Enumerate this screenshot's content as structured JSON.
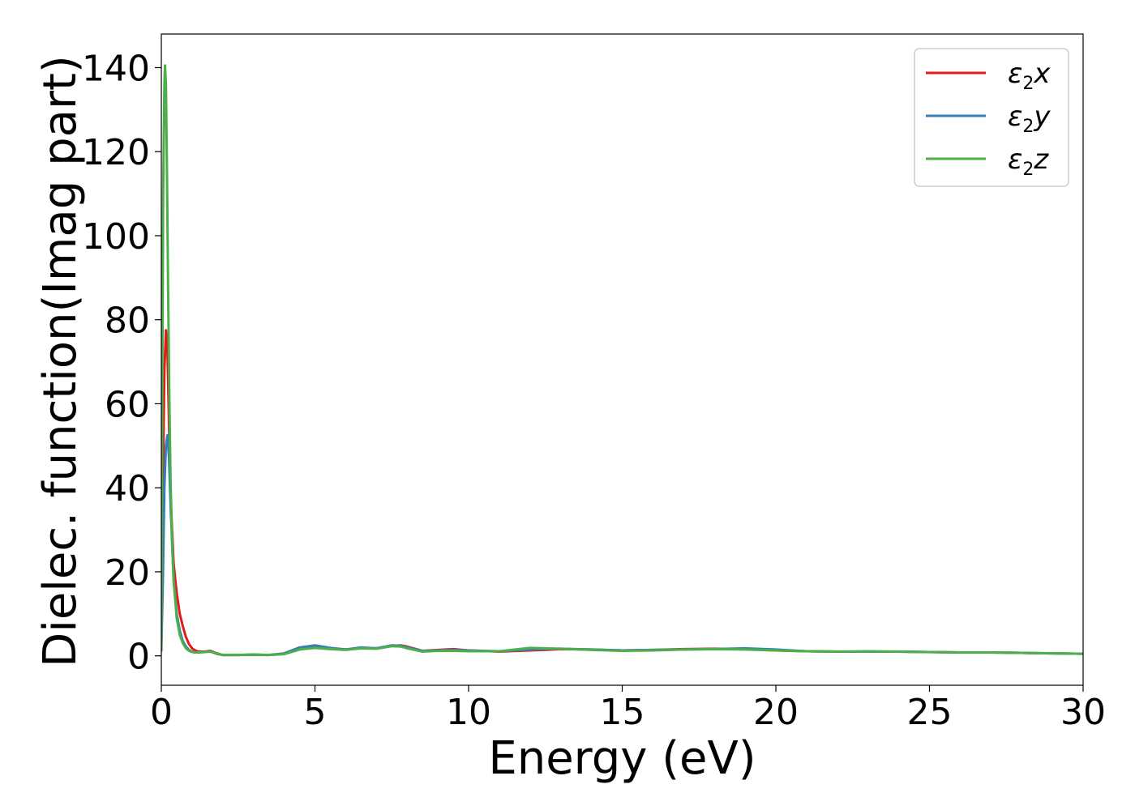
{
  "chart_data": {
    "type": "line",
    "title": "",
    "xlabel": "Energy (eV)",
    "ylabel": "Dielec. function(Imag part)",
    "xlim": [
      0,
      30
    ],
    "ylim": [
      -7,
      148
    ],
    "xticks": [
      0,
      5,
      10,
      15,
      20,
      25,
      30
    ],
    "yticks": [
      0,
      20,
      40,
      60,
      80,
      100,
      120,
      140
    ],
    "grid": false,
    "legend_position": "top-right",
    "series": [
      {
        "name": "ε2x",
        "legend": {
          "base": "ε",
          "sub": "2",
          "tail": "x"
        },
        "color": "#e41a1c",
        "x": [
          0,
          0.05,
          0.1,
          0.15,
          0.2,
          0.25,
          0.3,
          0.4,
          0.5,
          0.6,
          0.7,
          0.8,
          0.9,
          1.0,
          1.1,
          1.2,
          1.4,
          1.6,
          1.8,
          2.0,
          2.5,
          3.0,
          3.5,
          4.0,
          4.5,
          5.0,
          5.5,
          6.0,
          6.5,
          7.0,
          7.5,
          7.8,
          8.0,
          8.5,
          9.0,
          9.5,
          10.0,
          11.0,
          12.0,
          12.5,
          13.0,
          14.0,
          15.0,
          16.0,
          17.0,
          18.0,
          19.0,
          20.0,
          21.0,
          22.0,
          23.0,
          24.0,
          25.0,
          26.0,
          27.0,
          28.0,
          29.0,
          30.0
        ],
        "y": [
          2,
          40,
          68,
          77.5,
          72,
          55,
          38,
          22,
          15,
          10,
          7,
          4.5,
          2.8,
          1.8,
          1.3,
          1.0,
          1.0,
          1.2,
          0.6,
          0.2,
          0.2,
          0.3,
          0.2,
          0.5,
          1.8,
          2.2,
          1.8,
          1.5,
          1.9,
          1.8,
          2.4,
          2.5,
          2.2,
          1.2,
          1.4,
          1.6,
          1.3,
          1.0,
          1.3,
          1.4,
          1.6,
          1.5,
          1.3,
          1.4,
          1.6,
          1.7,
          1.6,
          1.3,
          1.1,
          1.0,
          1.0,
          1.0,
          0.9,
          0.8,
          0.8,
          0.7,
          0.6,
          0.5
        ]
      },
      {
        "name": "ε2y",
        "legend": {
          "base": "ε",
          "sub": "2",
          "tail": "y"
        },
        "color": "#377eb8",
        "x": [
          0,
          0.05,
          0.1,
          0.15,
          0.2,
          0.25,
          0.3,
          0.4,
          0.5,
          0.6,
          0.7,
          0.8,
          0.9,
          1.0,
          1.1,
          1.2,
          1.4,
          1.6,
          1.8,
          2.0,
          2.5,
          3.0,
          3.5,
          4.0,
          4.5,
          5.0,
          5.5,
          6.0,
          6.5,
          7.0,
          7.5,
          7.8,
          8.0,
          8.5,
          9.0,
          9.5,
          10.0,
          11.0,
          12.0,
          12.5,
          13.0,
          14.0,
          15.0,
          16.0,
          17.0,
          18.0,
          19.0,
          20.0,
          21.0,
          22.0,
          23.0,
          24.0,
          25.0,
          26.0,
          27.0,
          28.0,
          29.0,
          30.0
        ],
        "y": [
          1,
          18,
          40,
          50,
          52.5,
          47,
          36,
          18,
          10,
          6,
          3.5,
          2.2,
          1.4,
          1.0,
          0.8,
          0.8,
          0.9,
          1.1,
          0.5,
          0.2,
          0.2,
          0.3,
          0.2,
          0.6,
          2.0,
          2.5,
          1.9,
          1.5,
          2.0,
          1.8,
          2.5,
          2.4,
          2.0,
          1.2,
          1.3,
          1.4,
          1.3,
          1.1,
          1.5,
          1.6,
          1.7,
          1.5,
          1.3,
          1.4,
          1.5,
          1.6,
          1.8,
          1.5,
          1.1,
          1.0,
          1.0,
          1.0,
          0.9,
          0.8,
          0.8,
          0.7,
          0.6,
          0.5
        ]
      },
      {
        "name": "ε2z",
        "legend": {
          "base": "ε",
          "sub": "2",
          "tail": "z"
        },
        "color": "#4daf4a",
        "x": [
          0,
          0.03,
          0.06,
          0.1,
          0.12,
          0.15,
          0.18,
          0.22,
          0.26,
          0.3,
          0.35,
          0.4,
          0.5,
          0.6,
          0.7,
          0.8,
          0.9,
          1.0,
          1.1,
          1.2,
          1.4,
          1.6,
          1.8,
          2.0,
          2.5,
          3.0,
          3.5,
          4.0,
          4.5,
          5.0,
          5.5,
          6.0,
          6.5,
          7.0,
          7.5,
          7.8,
          8.0,
          8.5,
          9.0,
          9.5,
          10.0,
          11.0,
          12.0,
          12.5,
          13.0,
          14.0,
          15.0,
          16.0,
          17.0,
          18.0,
          19.0,
          20.0,
          21.0,
          22.0,
          23.0,
          24.0,
          25.0,
          26.0,
          27.0,
          28.0,
          29.0,
          30.0
        ],
        "y": [
          2,
          60,
          110,
          136,
          140.5,
          136,
          118,
          88,
          62,
          42,
          27,
          18,
          9,
          5,
          3,
          1.8,
          1.2,
          0.9,
          0.8,
          0.8,
          0.9,
          1.0,
          0.5,
          0.2,
          0.2,
          0.2,
          0.2,
          0.4,
          1.5,
          1.9,
          1.6,
          1.4,
          1.8,
          1.7,
          2.3,
          2.2,
          1.8,
          1.0,
          1.2,
          1.2,
          1.1,
          1.1,
          1.9,
          1.8,
          1.7,
          1.4,
          1.2,
          1.3,
          1.5,
          1.6,
          1.5,
          1.3,
          1.1,
          1.0,
          1.1,
          1.0,
          0.9,
          0.8,
          0.8,
          0.7,
          0.6,
          0.5
        ]
      }
    ]
  }
}
